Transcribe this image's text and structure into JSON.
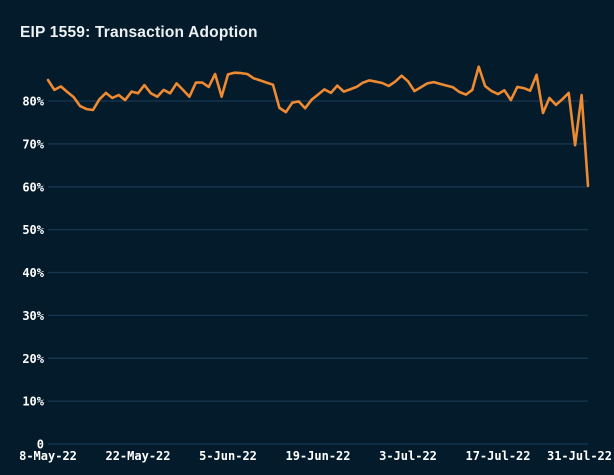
{
  "title": "EIP 1559: Transaction Adoption",
  "colors": {
    "background": "#041b2c",
    "line": "#ee8a31",
    "grid": "#17374f",
    "text": "#ffffff",
    "title_text": "#eef2f4"
  },
  "chart_data": {
    "type": "line",
    "title": "EIP 1559: Transaction Adoption",
    "xlabel": "",
    "ylabel": "",
    "x_frequency": "daily",
    "x_range": [
      "8-May-22",
      "31-Jul-22"
    ],
    "x_tick_labels": [
      "8-May-22",
      "22-May-22",
      "5-Jun-22",
      "19-Jun-22",
      "3-Jul-22",
      "17-Jul-22",
      "31-Jul-22"
    ],
    "x_tick_day_indices": [
      0,
      14,
      28,
      42,
      56,
      70,
      84
    ],
    "y_tick_labels": [
      "0",
      "10%",
      "20%",
      "30%",
      "40%",
      "50%",
      "60%",
      "70%",
      "80%"
    ],
    "y_tick_values": [
      0,
      10,
      20,
      30,
      40,
      50,
      60,
      70,
      80
    ],
    "ylim": [
      0,
      90
    ],
    "grid": "horizontal-only",
    "legend": "none",
    "series": [
      {
        "name": "EIP 1559: Transaction Adoption",
        "unit": "%",
        "dates": [
          "8-May-22",
          "9-May-22",
          "10-May-22",
          "11-May-22",
          "12-May-22",
          "13-May-22",
          "14-May-22",
          "15-May-22",
          "16-May-22",
          "17-May-22",
          "18-May-22",
          "19-May-22",
          "20-May-22",
          "21-May-22",
          "22-May-22",
          "23-May-22",
          "24-May-22",
          "25-May-22",
          "26-May-22",
          "27-May-22",
          "28-May-22",
          "29-May-22",
          "30-May-22",
          "31-May-22",
          "1-Jun-22",
          "2-Jun-22",
          "3-Jun-22",
          "4-Jun-22",
          "5-Jun-22",
          "6-Jun-22",
          "7-Jun-22",
          "8-Jun-22",
          "9-Jun-22",
          "10-Jun-22",
          "11-Jun-22",
          "12-Jun-22",
          "13-Jun-22",
          "14-Jun-22",
          "15-Jun-22",
          "16-Jun-22",
          "17-Jun-22",
          "18-Jun-22",
          "19-Jun-22",
          "20-Jun-22",
          "21-Jun-22",
          "22-Jun-22",
          "23-Jun-22",
          "24-Jun-22",
          "25-Jun-22",
          "26-Jun-22",
          "27-Jun-22",
          "28-Jun-22",
          "29-Jun-22",
          "30-Jun-22",
          "1-Jul-22",
          "2-Jul-22",
          "3-Jul-22",
          "4-Jul-22",
          "5-Jul-22",
          "6-Jul-22",
          "7-Jul-22",
          "8-Jul-22",
          "9-Jul-22",
          "10-Jul-22",
          "11-Jul-22",
          "12-Jul-22",
          "13-Jul-22",
          "14-Jul-22",
          "15-Jul-22",
          "16-Jul-22",
          "17-Jul-22",
          "18-Jul-22",
          "19-Jul-22",
          "20-Jul-22",
          "21-Jul-22",
          "22-Jul-22",
          "23-Jul-22",
          "24-Jul-22",
          "25-Jul-22",
          "26-Jul-22",
          "27-Jul-22",
          "28-Jul-22",
          "29-Jul-22",
          "30-Jul-22",
          "31-Jul-22"
        ],
        "values": [
          84.9,
          82.6,
          83.4,
          82.1,
          80.9,
          78.8,
          78.1,
          77.9,
          80.4,
          81.9,
          80.7,
          81.4,
          80.2,
          82.2,
          81.8,
          83.7,
          81.8,
          81.0,
          82.6,
          81.8,
          84.1,
          82.6,
          81.0,
          84.3,
          84.3,
          83.3,
          86.3,
          81.0,
          86.2,
          86.6,
          86.5,
          86.3,
          85.3,
          84.8,
          84.3,
          83.8,
          78.4,
          77.4,
          79.6,
          79.9,
          78.3,
          80.3,
          81.5,
          82.7,
          81.9,
          83.6,
          82.2,
          82.7,
          83.3,
          84.3,
          84.8,
          84.5,
          84.2,
          83.5,
          84.5,
          85.9,
          84.6,
          82.3,
          83.2,
          84.1,
          84.4,
          84.0,
          83.6,
          83.2,
          82.1,
          81.5,
          82.6,
          88.0,
          83.5,
          82.3,
          81.6,
          82.5,
          80.2,
          83.3,
          83.0,
          82.4,
          86.1,
          77.2,
          80.7,
          79.1,
          80.4,
          81.9,
          69.7,
          81.4,
          60.2
        ]
      }
    ]
  }
}
